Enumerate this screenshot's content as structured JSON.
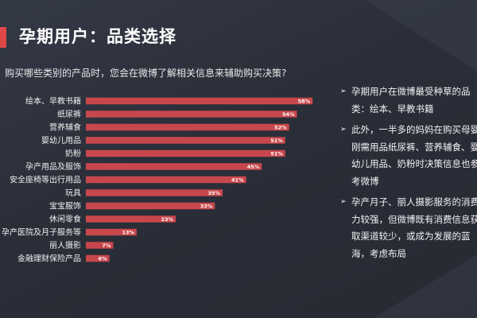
{
  "header": {
    "title": "孕期用户：品类选择",
    "question": "购买哪些类别的产品时，您会在微博了解相关信息来辅助购买决策?"
  },
  "colors": {
    "accent": "#e04848",
    "bar": "#c8474c",
    "background": "#2b2f3a"
  },
  "chart_data": {
    "type": "bar",
    "orientation": "horizontal",
    "categories": [
      "绘本、早教书籍",
      "纸尿裤",
      "营养辅食",
      "婴幼儿用品",
      "奶粉",
      "孕产用品及服饰",
      "安全座椅等出行用品",
      "玩具",
      "宝宝服饰",
      "休闲零食",
      "孕产医院及月子服务等",
      "丽人摄影",
      "金融理财保险产品"
    ],
    "values": [
      58,
      54,
      52,
      51,
      51,
      45,
      41,
      35,
      33,
      23,
      13,
      7,
      6
    ],
    "value_labels": [
      "58%",
      "54%",
      "52%",
      "51%",
      "51%",
      "45%",
      "41%",
      "35%",
      "33%",
      "23%",
      "13%",
      "7%",
      "6%"
    ],
    "xlim": [
      0,
      60
    ],
    "grid": false,
    "xlabel": "",
    "ylabel": ""
  },
  "notes": [
    {
      "lines": [
        "孕期用户在微博最受种草的品",
        "类：绘本、早教书籍"
      ]
    },
    {
      "lines": [
        "此外，一半多的妈妈在购买母婴",
        "刚需用品纸尿裤、营养辅食、婴",
        "幼儿用品、奶粉时决策信息也参",
        "考微博"
      ]
    },
    {
      "lines": [
        "孕产月子、丽人摄影服务的消费",
        "力较强，但微博既有消费信息获",
        "取渠道较少，或成为发展的蓝",
        "海，考虑布局"
      ]
    }
  ]
}
